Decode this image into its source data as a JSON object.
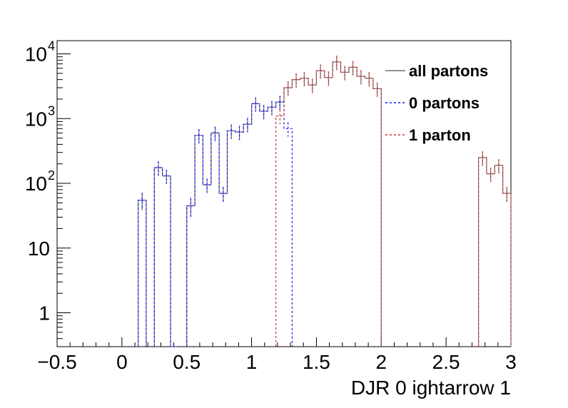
{
  "chart_data": {
    "type": "line",
    "subtype": "step-histogram",
    "title": "",
    "xlabel": "DJR 0 ightarrow 1",
    "ylabel": "",
    "xlim": [
      -0.5,
      3.0
    ],
    "ylim": [
      0.3,
      16000
    ],
    "yscale": "log",
    "grid": false,
    "legend_position": "top-right",
    "bin_width": 0.0625,
    "x_ticks": [
      {
        "value": -0.5,
        "label": "−0.5"
      },
      {
        "value": 0,
        "label": "0"
      },
      {
        "value": 0.5,
        "label": "0.5"
      },
      {
        "value": 1,
        "label": "1"
      },
      {
        "value": 1.5,
        "label": "1.5"
      },
      {
        "value": 2,
        "label": "2"
      },
      {
        "value": 2.5,
        "label": "2.5"
      },
      {
        "value": 3,
        "label": "3"
      }
    ],
    "y_ticks": [
      {
        "value": 1,
        "base": "1",
        "exp": ""
      },
      {
        "value": 10,
        "base": "10",
        "exp": ""
      },
      {
        "value": 100,
        "base": "10",
        "exp": "2"
      },
      {
        "value": 1000,
        "base": "10",
        "exp": "3"
      },
      {
        "value": 10000,
        "base": "10",
        "exp": "4"
      }
    ],
    "series": [
      {
        "name": "all partons",
        "color": "#6e6e6e",
        "dash": "",
        "x": [
          0.125,
          0.25,
          0.3125,
          0.375,
          0.5,
          0.5625,
          0.625,
          0.6875,
          0.75,
          0.8125,
          0.875,
          0.9375,
          1.0,
          1.0625,
          1.125,
          1.1875,
          1.25,
          1.3125,
          1.375,
          1.4375,
          1.5,
          1.5625,
          1.625,
          1.6875,
          1.75,
          1.8125,
          1.875,
          1.9375,
          2.75,
          2.8125,
          2.875,
          2.9375
        ],
        "y": [
          55,
          175,
          130,
          0,
          45,
          550,
          95,
          600,
          70,
          650,
          620,
          820,
          1700,
          1300,
          1500,
          1800,
          3000,
          4000,
          4200,
          3300,
          5500,
          4300,
          7500,
          5200,
          6200,
          4500,
          4200,
          2900,
          250,
          140,
          190,
          70
        ]
      },
      {
        "name": "0 partons",
        "color": "#1a1aff",
        "dash": "3,3",
        "x": [
          0.125,
          0.25,
          0.3125,
          0.375,
          0.5,
          0.5625,
          0.625,
          0.6875,
          0.75,
          0.8125,
          0.875,
          0.9375,
          1.0,
          1.0625,
          1.125,
          1.1875,
          1.25
        ],
        "y": [
          55,
          175,
          130,
          0,
          45,
          550,
          95,
          600,
          70,
          650,
          620,
          820,
          1700,
          1300,
          1500,
          1800,
          700
        ]
      },
      {
        "name": "1 parton",
        "color": "#cc3333",
        "dash": "3,3",
        "x": [
          1.1875,
          1.25,
          1.3125,
          1.375,
          1.4375,
          1.5,
          1.5625,
          1.625,
          1.6875,
          1.75,
          1.8125,
          1.875,
          1.9375,
          2.75,
          2.8125,
          2.875,
          2.9375
        ],
        "y": [
          1100,
          3000,
          4000,
          4200,
          3300,
          5500,
          4300,
          7500,
          5200,
          6200,
          4500,
          4200,
          2900,
          250,
          140,
          190,
          70
        ]
      }
    ]
  }
}
